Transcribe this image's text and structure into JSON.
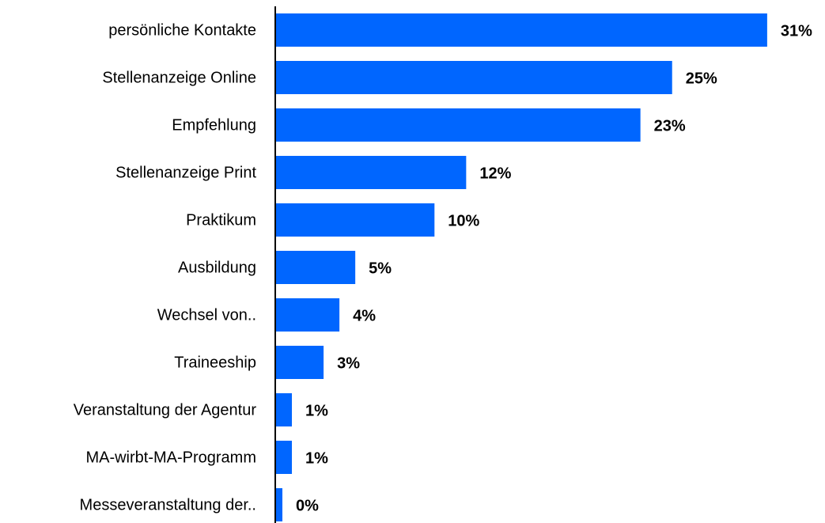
{
  "chart_data": {
    "type": "bar",
    "orientation": "horizontal",
    "categories": [
      "persönliche Kontakte",
      "Stellenanzeige Online",
      "Empfehlung",
      "Stellenanzeige Print",
      "Praktikum",
      "Ausbildung",
      "Wechsel von..",
      "Traineeship",
      "Veranstaltung der Agentur",
      "MA-wirbt-MA-Programm",
      "Messeveranstaltung der.."
    ],
    "values": [
      31,
      25,
      23,
      12,
      10,
      5,
      4,
      3,
      1,
      1,
      0.4
    ],
    "value_labels": [
      "31%",
      "25%",
      "23%",
      "12%",
      "10%",
      "5%",
      "4%",
      "3%",
      "1%",
      "1%",
      "0%"
    ],
    "color": "#0066ff",
    "xlim": [
      0,
      34.6
    ]
  }
}
